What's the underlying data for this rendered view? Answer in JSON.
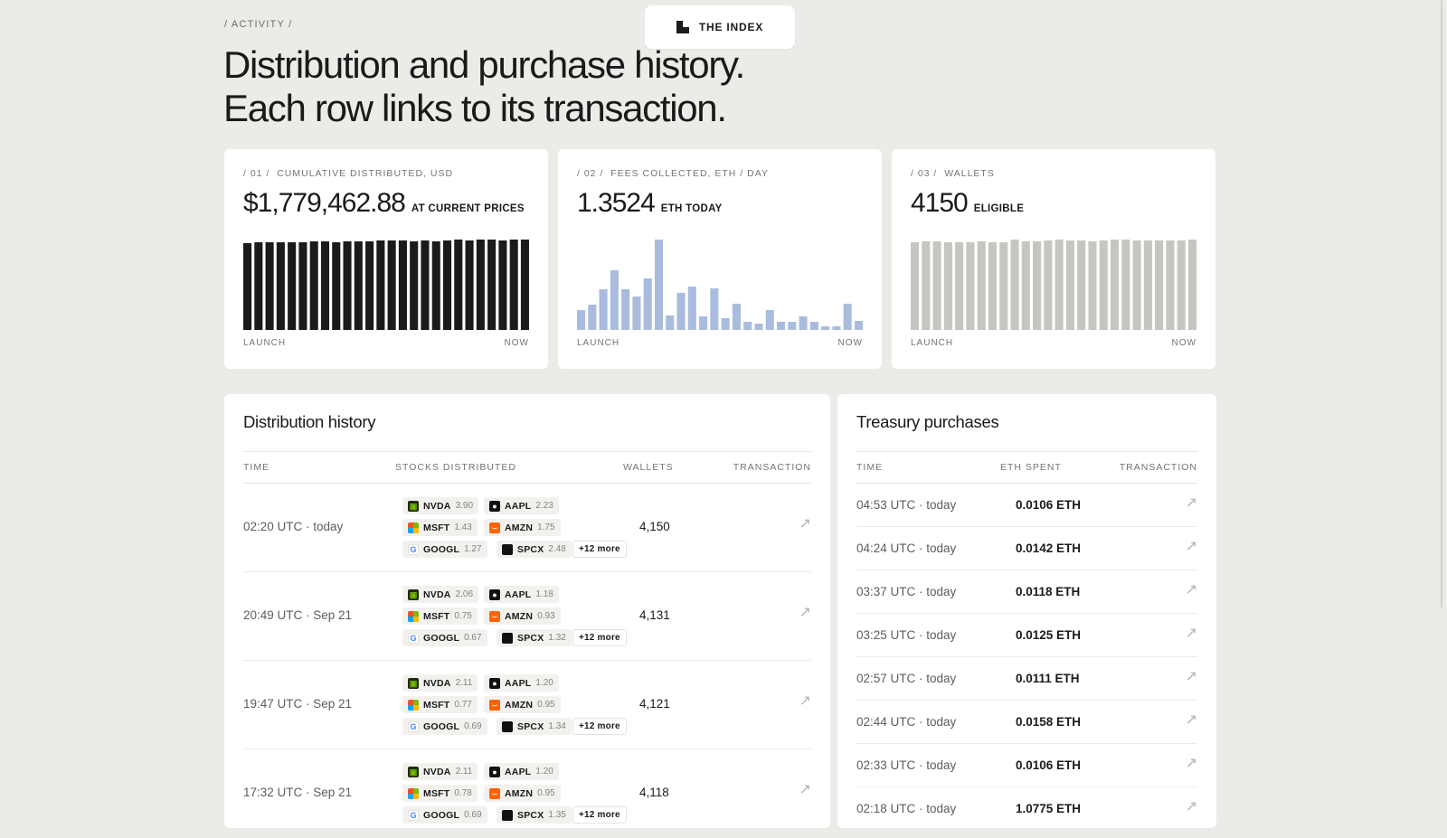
{
  "brand": {
    "label": "THE INDEX"
  },
  "breadcrumb": "/ ACTIVITY /",
  "headline": [
    "Distribution and purchase history.",
    "Each row links to its transaction."
  ],
  "stats": [
    {
      "index_label": "/ 01 /",
      "label": "CUMULATIVE DISTRIBUTED, USD",
      "value": "$1,779,462.88",
      "unit": "AT CURRENT PRICES",
      "axis_start": "LAUNCH",
      "axis_end": "NOW"
    },
    {
      "index_label": "/ 02 /",
      "label": "FEES COLLECTED, ETH / DAY",
      "value": "1.3524",
      "unit": "ETH TODAY",
      "axis_start": "LAUNCH",
      "axis_end": "NOW"
    },
    {
      "index_label": "/ 03 /",
      "label": "WALLETS",
      "value": "4150",
      "unit": "ELIGIBLE",
      "axis_start": "LAUNCH",
      "axis_end": "NOW"
    }
  ],
  "chart_data": [
    {
      "type": "bar",
      "color": "#1b1b1b",
      "values": [
        0.96,
        0.97,
        0.97,
        0.97,
        0.97,
        0.97,
        0.98,
        0.98,
        0.97,
        0.98,
        0.98,
        0.98,
        0.99,
        0.99,
        0.99,
        0.98,
        0.99,
        0.98,
        0.99,
        1.0,
        0.99,
        1.0,
        1.0,
        0.99,
        1.0,
        1.0
      ]
    },
    {
      "type": "bar",
      "color": "#a9bcdd",
      "values": [
        0.22,
        0.28,
        0.45,
        0.66,
        0.45,
        0.37,
        0.57,
        1.0,
        0.16,
        0.41,
        0.48,
        0.15,
        0.46,
        0.13,
        0.29,
        0.09,
        0.07,
        0.22,
        0.09,
        0.09,
        0.15,
        0.09,
        0.04,
        0.04,
        0.29,
        0.1
      ]
    },
    {
      "type": "bar",
      "color": "#c7c5c0",
      "values": [
        0.97,
        0.98,
        0.98,
        0.97,
        0.97,
        0.97,
        0.98,
        0.97,
        0.97,
        1.0,
        0.98,
        0.98,
        0.99,
        1.0,
        0.99,
        0.99,
        0.98,
        0.99,
        1.0,
        1.0,
        0.99,
        0.99,
        0.99,
        0.99,
        0.99,
        1.0
      ]
    }
  ],
  "distribution": {
    "title": "Distribution history",
    "columns": [
      "TIME",
      "STOCKS DISTRIBUTED",
      "WALLETS",
      "TRANSACTION"
    ],
    "more_label": "+12 more",
    "rows": [
      {
        "time": "02:20 UTC · today",
        "wallets": "4,150",
        "stocks": [
          [
            "NVDA",
            "3.90"
          ],
          [
            "AAPL",
            "2.23"
          ],
          [
            "MSFT",
            "1.43"
          ],
          [
            "AMZN",
            "1.75"
          ],
          [
            "GOOGL",
            "1.27"
          ],
          [
            "SPCX",
            "2.48"
          ]
        ]
      },
      {
        "time": "20:49 UTC · Sep 21",
        "wallets": "4,131",
        "stocks": [
          [
            "NVDA",
            "2.06"
          ],
          [
            "AAPL",
            "1.18"
          ],
          [
            "MSFT",
            "0.75"
          ],
          [
            "AMZN",
            "0.93"
          ],
          [
            "GOOGL",
            "0.67"
          ],
          [
            "SPCX",
            "1.32"
          ]
        ]
      },
      {
        "time": "19:47 UTC · Sep 21",
        "wallets": "4,121",
        "stocks": [
          [
            "NVDA",
            "2.11"
          ],
          [
            "AAPL",
            "1.20"
          ],
          [
            "MSFT",
            "0.77"
          ],
          [
            "AMZN",
            "0.95"
          ],
          [
            "GOOGL",
            "0.69"
          ],
          [
            "SPCX",
            "1.34"
          ]
        ]
      },
      {
        "time": "17:32 UTC · Sep 21",
        "wallets": "4,118",
        "stocks": [
          [
            "NVDA",
            "2.11"
          ],
          [
            "AAPL",
            "1.20"
          ],
          [
            "MSFT",
            "0.78"
          ],
          [
            "AMZN",
            "0.95"
          ],
          [
            "GOOGL",
            "0.69"
          ],
          [
            "SPCX",
            "1.35"
          ]
        ]
      }
    ]
  },
  "treasury": {
    "title": "Treasury purchases",
    "columns": [
      "TIME",
      "ETH SPENT",
      "TRANSACTION"
    ],
    "rows": [
      {
        "time": "04:53 UTC · today",
        "eth": "0.0106 ETH"
      },
      {
        "time": "04:24 UTC · today",
        "eth": "0.0142 ETH"
      },
      {
        "time": "03:37 UTC · today",
        "eth": "0.0118 ETH"
      },
      {
        "time": "03:25 UTC · today",
        "eth": "0.0125 ETH"
      },
      {
        "time": "02:57 UTC · today",
        "eth": "0.0111 ETH"
      },
      {
        "time": "02:44 UTC · today",
        "eth": "0.0158 ETH"
      },
      {
        "time": "02:33 UTC · today",
        "eth": "0.0106 ETH"
      },
      {
        "time": "02:18 UTC · today",
        "eth": "1.0775 ETH"
      }
    ]
  }
}
